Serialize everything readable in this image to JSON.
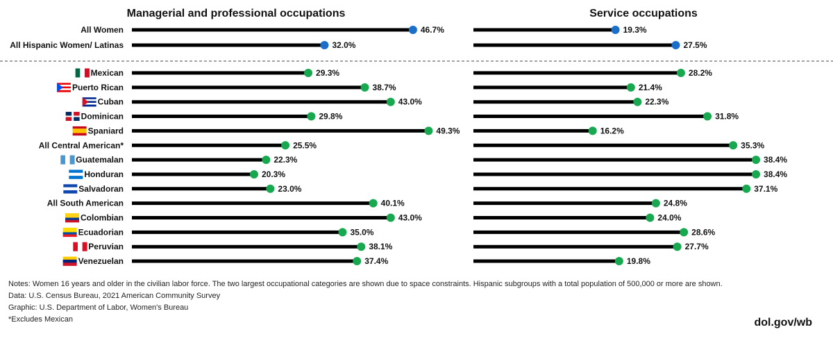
{
  "chart_data": {
    "type": "lollipop",
    "unit": "%",
    "panels": [
      {
        "title": "Managerial and professional occupations",
        "xlim": [
          0,
          50
        ]
      },
      {
        "title": "Service occupations",
        "xlim": [
          0,
          40
        ]
      }
    ],
    "groups": [
      {
        "label": "All Women",
        "values": [
          46.7,
          19.3
        ],
        "kind": "summary",
        "flag": null
      },
      {
        "label": "All Hispanic Women/ Latinas",
        "values": [
          32.0,
          27.5
        ],
        "kind": "summary",
        "flag": null
      },
      {
        "label": "Mexican",
        "values": [
          29.3,
          28.2
        ],
        "kind": "subgroup",
        "flag": "mexico"
      },
      {
        "label": "Puerto Rican",
        "values": [
          38.7,
          21.4
        ],
        "kind": "subgroup",
        "flag": "puerto-rico"
      },
      {
        "label": "Cuban",
        "values": [
          43.0,
          22.3
        ],
        "kind": "subgroup",
        "flag": "cuba"
      },
      {
        "label": "Dominican",
        "values": [
          29.8,
          31.8
        ],
        "kind": "subgroup",
        "flag": "dominican-republic"
      },
      {
        "label": "Spaniard",
        "values": [
          49.3,
          16.2
        ],
        "kind": "subgroup",
        "flag": "spain"
      },
      {
        "label": "All Central American*",
        "values": [
          25.5,
          35.3
        ],
        "kind": "subgroup",
        "flag": null
      },
      {
        "label": "Guatemalan",
        "values": [
          22.3,
          38.4
        ],
        "kind": "subgroup",
        "flag": "guatemala"
      },
      {
        "label": "Honduran",
        "values": [
          20.3,
          38.4
        ],
        "kind": "subgroup",
        "flag": "honduras"
      },
      {
        "label": "Salvadoran",
        "values": [
          23.0,
          37.1
        ],
        "kind": "subgroup",
        "flag": "el-salvador"
      },
      {
        "label": "All South American",
        "values": [
          40.1,
          24.8
        ],
        "kind": "subgroup",
        "flag": null
      },
      {
        "label": "Colombian",
        "values": [
          43.0,
          24.0
        ],
        "kind": "subgroup",
        "flag": "colombia"
      },
      {
        "label": "Ecuadorian",
        "values": [
          35.0,
          28.6
        ],
        "kind": "subgroup",
        "flag": "ecuador"
      },
      {
        "label": "Peruvian",
        "values": [
          38.1,
          27.7
        ],
        "kind": "subgroup",
        "flag": "peru"
      },
      {
        "label": "Venezuelan",
        "values": [
          37.4,
          19.8
        ],
        "kind": "subgroup",
        "flag": "venezuela"
      }
    ],
    "colors": {
      "summary": "#1b6fc8",
      "subgroup": "#18a84f",
      "bar": "#000000"
    }
  },
  "footer": {
    "notes": "Notes: Women 16 years and older in the civilian labor force. The two largest occupational categories are shown due to space constraints. Hispanic subgroups with a total population of 500,000 or more are shown.",
    "data": "Data: U.S. Census Bureau, 2021 American Community Survey",
    "graphic": "Graphic: U.S. Department of Labor, Women's Bureau",
    "footnote": "*Excludes Mexican",
    "brand": "dol.gov/wb"
  }
}
